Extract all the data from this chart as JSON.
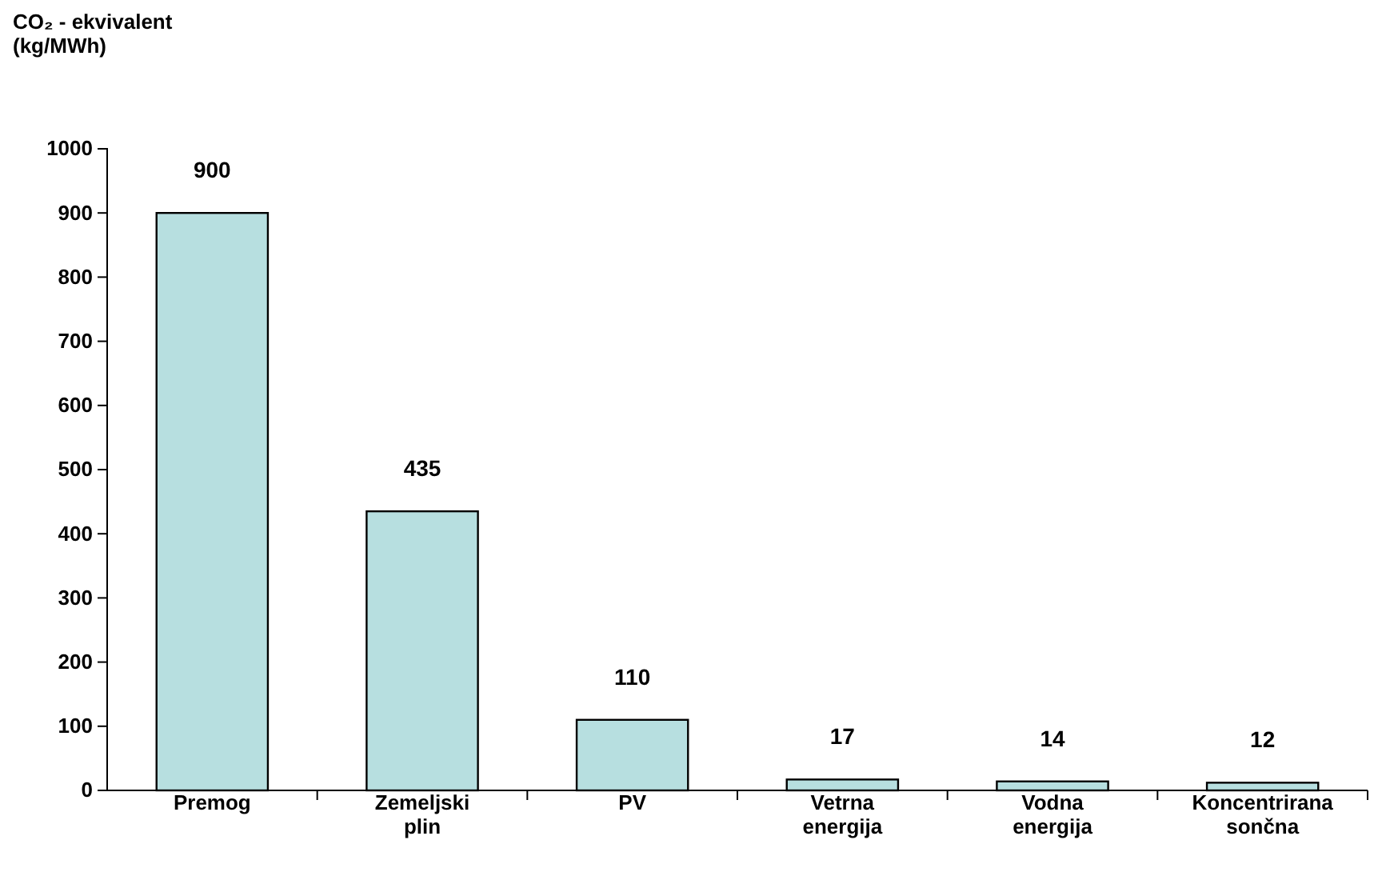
{
  "chart_data": {
    "type": "bar",
    "ylabel": "CO₂ - ekvivalent (kg/MWh)",
    "categories": [
      "Premog",
      "Zemeljski plin",
      "PV",
      "Vetrna energija",
      "Vodna energija",
      "Koncentrirana sončna"
    ],
    "values": [
      900,
      435,
      110,
      17,
      14,
      12
    ],
    "color": "#b7dfe0",
    "ylim": [
      0,
      1000
    ],
    "yticks": [
      0,
      100,
      200,
      300,
      400,
      500,
      600,
      700,
      800,
      900,
      1000
    ],
    "data_labels": true,
    "grid": false
  }
}
